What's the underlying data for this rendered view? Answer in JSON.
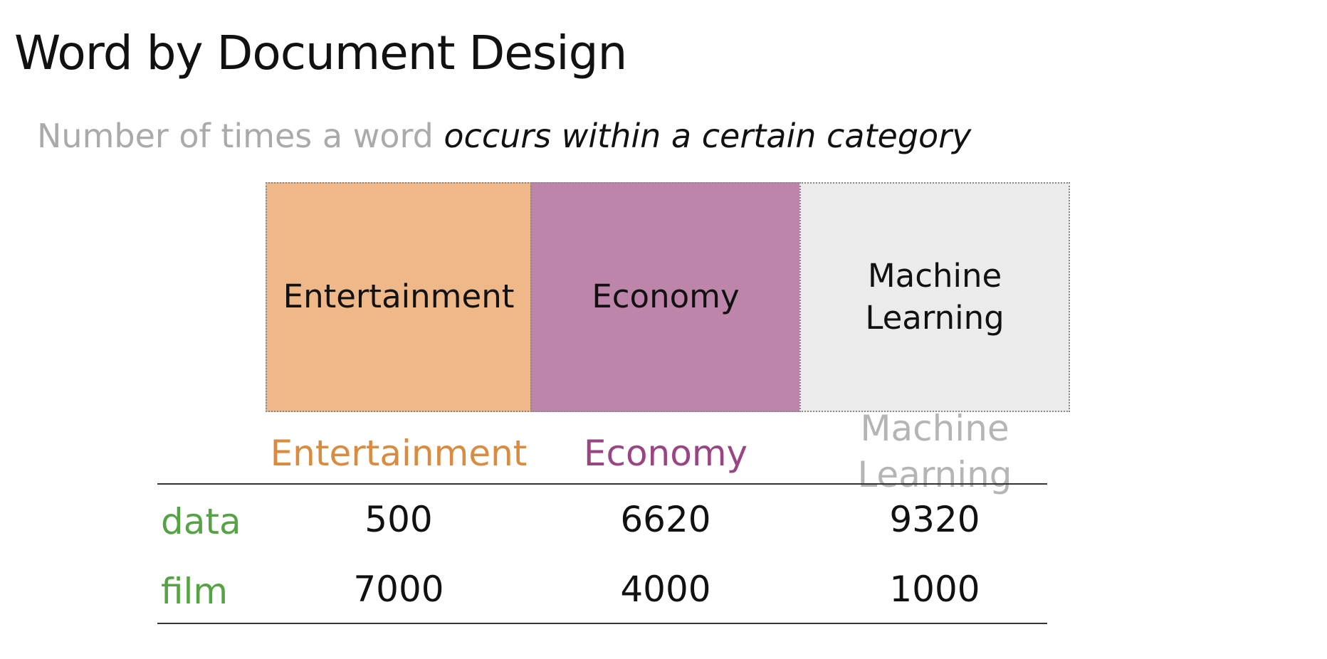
{
  "slide": {
    "title": "Word by Document Design",
    "subtitle_plain": "Number of times a word",
    "subtitle_emphasis": "occurs within a certain category"
  },
  "categories": [
    {
      "label": "Entertainment",
      "color": "#efb888",
      "text_color": "#d98b3f"
    },
    {
      "label": "Economy",
      "color": "#bd85a9",
      "text_color": "#9a4583"
    },
    {
      "label": "Machine Learning",
      "color": "#ebebeb",
      "text_color": "#b5b5b5"
    }
  ],
  "table": {
    "columns": [
      "Entertainment",
      "Economy",
      "Machine Learning"
    ],
    "rows": [
      {
        "word": "data",
        "values": [
          "500",
          "6620",
          "9320"
        ]
      },
      {
        "word": "film",
        "values": [
          "7000",
          "4000",
          "1000"
        ]
      }
    ],
    "row_label_color": "#56a343"
  }
}
